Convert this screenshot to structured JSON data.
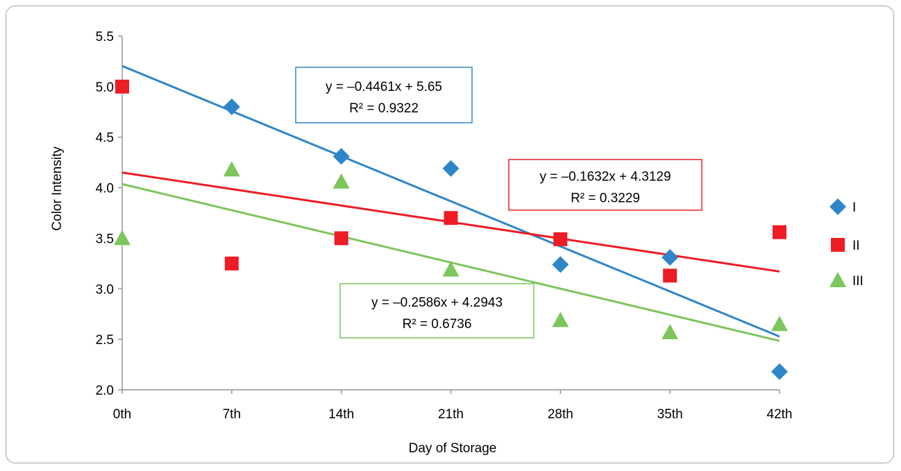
{
  "chart_data": {
    "type": "scatter",
    "xlabel": "Day of Storage",
    "ylabel": "Color Intensity",
    "categories": [
      "0th",
      "7th",
      "14th",
      "21th",
      "28th",
      "35th",
      "42th"
    ],
    "ylim": [
      2.0,
      5.5
    ],
    "yticks": [
      "2.0",
      "2.5",
      "3.0",
      "3.5",
      "4.0",
      "4.5",
      "5.0",
      "5.5"
    ],
    "grid": false,
    "legend_position": "right",
    "series": [
      {
        "name": "I",
        "marker": "diamond",
        "color": "#2E86C8",
        "values": [
          null,
          4.8,
          4.31,
          4.19,
          3.24,
          3.31,
          2.18
        ],
        "trendline": {
          "slope": -0.4461,
          "intercept": 5.65,
          "equation": "y = –0.4461x + 5.65",
          "r2": "R² = 0.9322",
          "color": "#2E86C8"
        }
      },
      {
        "name": "II",
        "marker": "square",
        "color": "#EE1C25",
        "values": [
          5.0,
          3.25,
          3.5,
          3.7,
          3.49,
          3.13,
          3.56
        ],
        "trendline": {
          "slope": -0.1632,
          "intercept": 4.3129,
          "equation": "y = –0.1632x + 4.3129",
          "r2": "R² = 0.3229",
          "color": "#EE1C25"
        }
      },
      {
        "name": "III",
        "marker": "triangle",
        "color": "#7DC55C",
        "values": [
          3.5,
          4.18,
          4.06,
          3.19,
          2.69,
          2.57,
          2.65
        ],
        "trendline": {
          "slope": -0.2586,
          "intercept": 4.2943,
          "equation": "y = –0.2586x + 4.2943",
          "r2": "R² = 0.6736",
          "color": "#7DC55C"
        }
      }
    ]
  }
}
